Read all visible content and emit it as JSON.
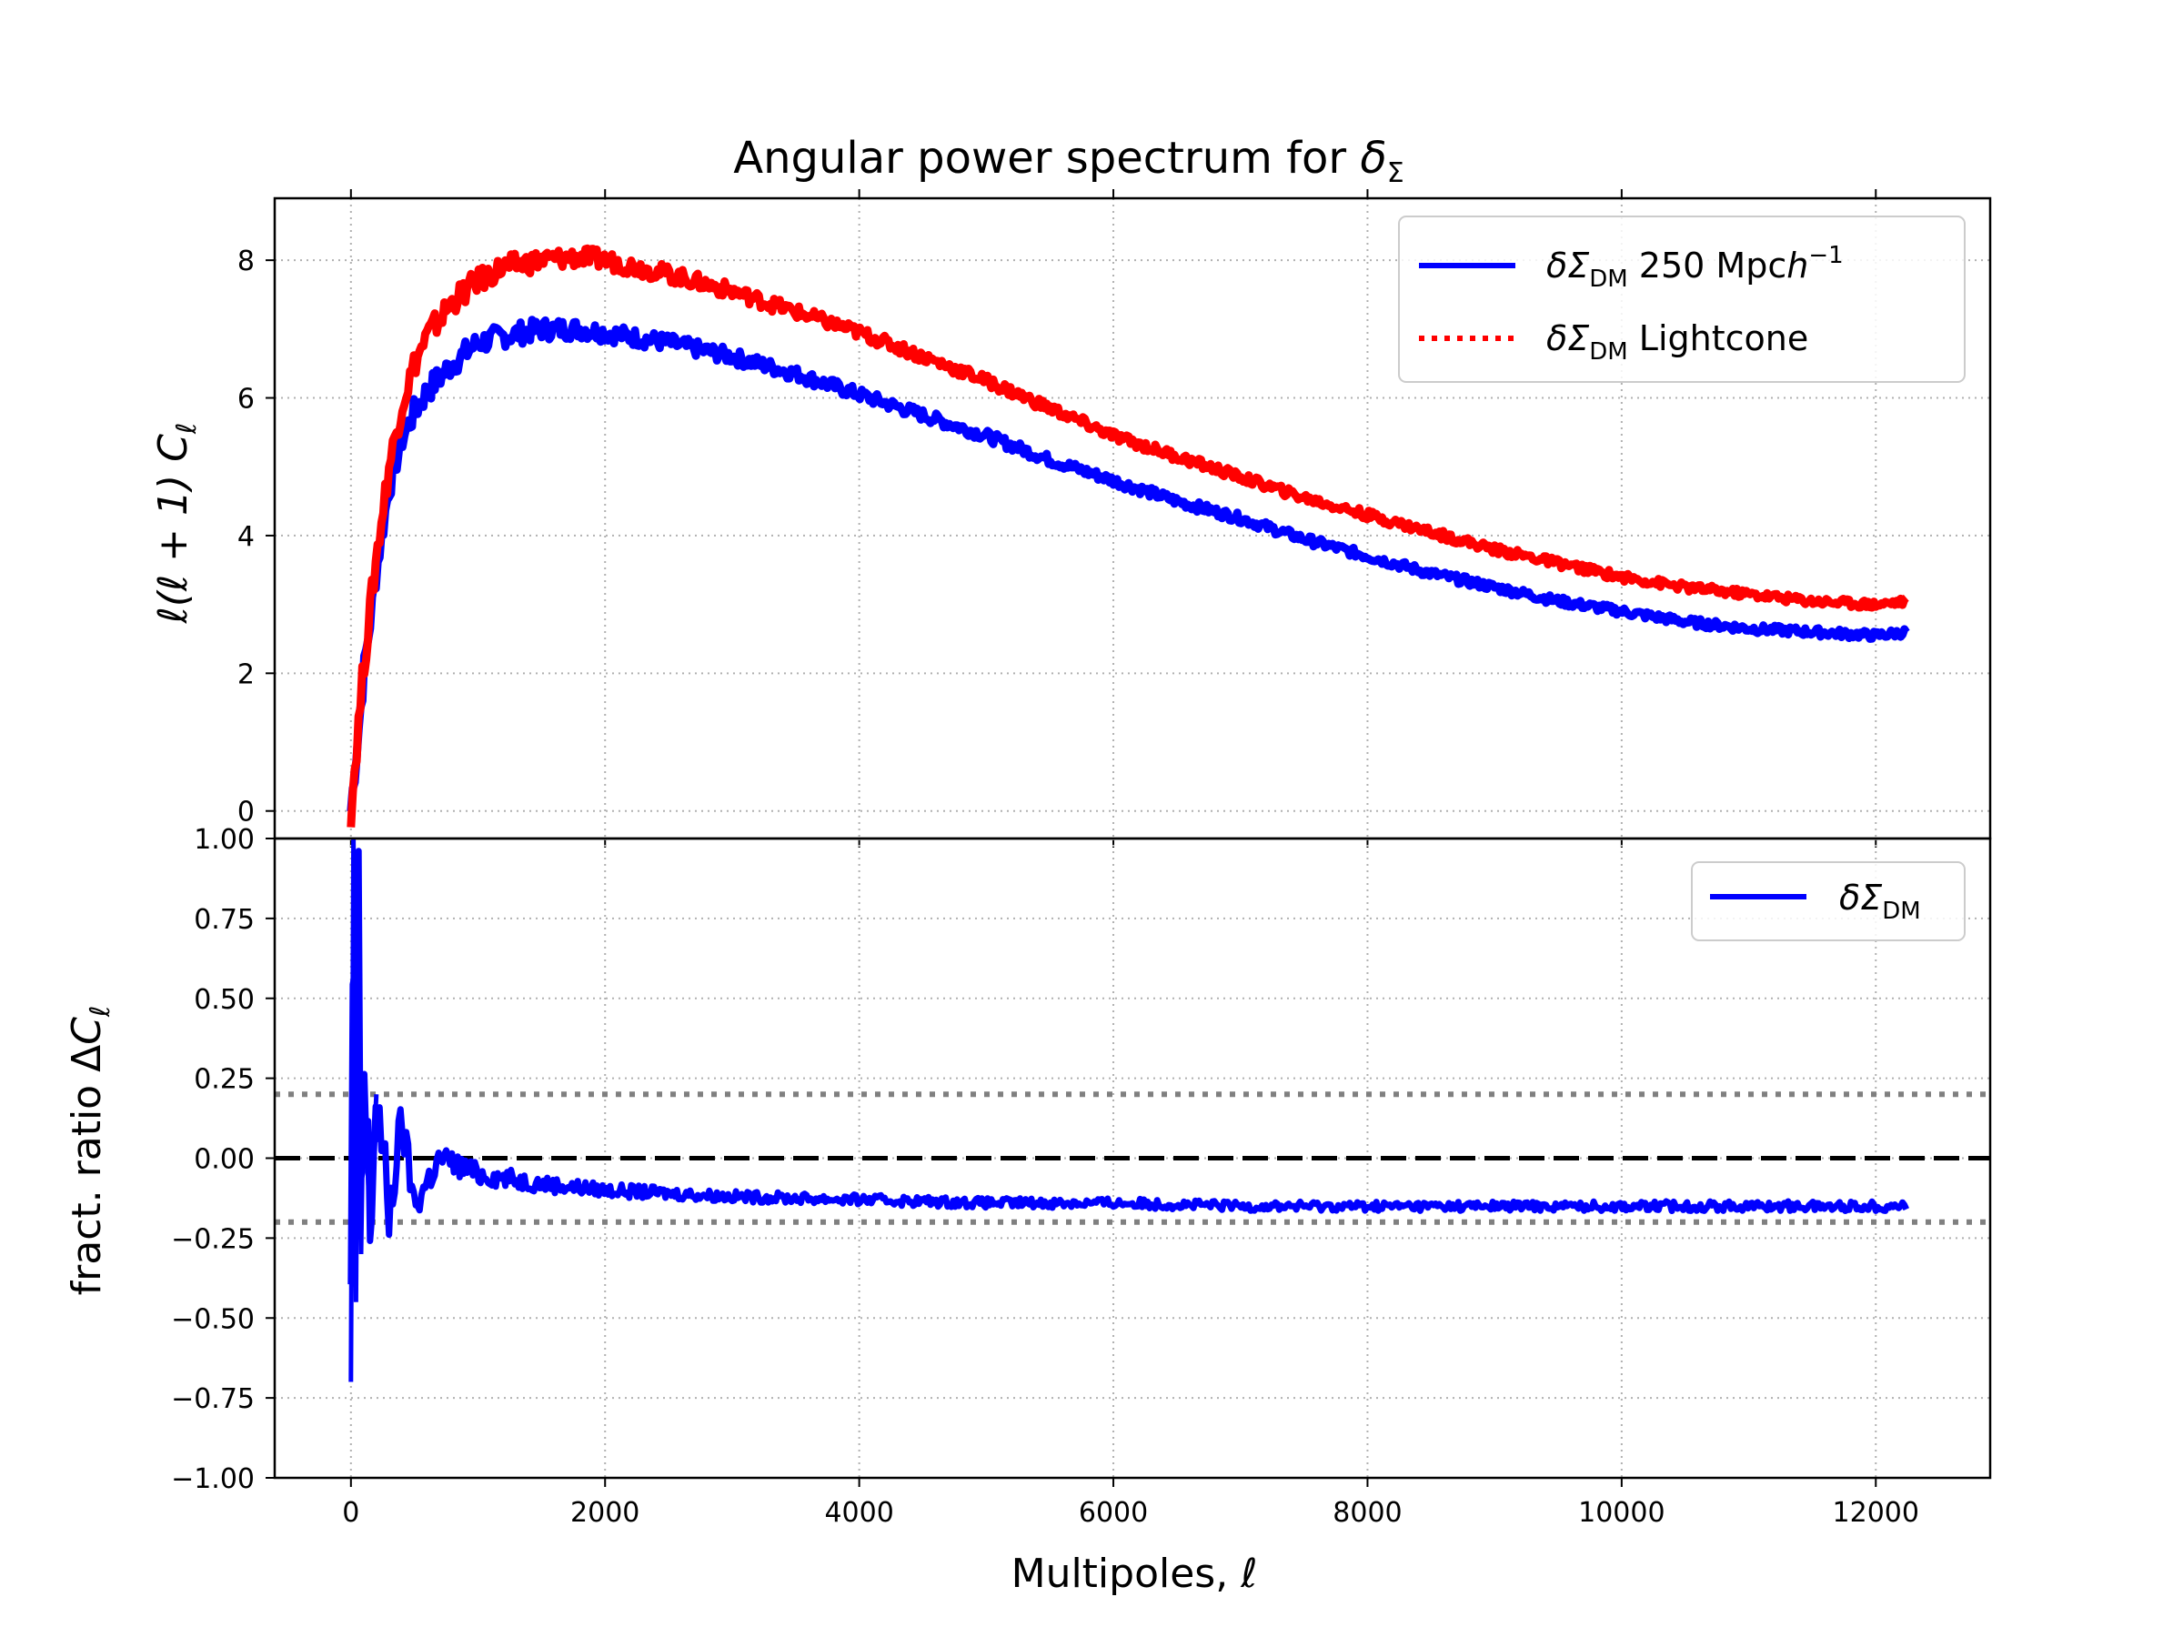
{
  "chart_data": [
    {
      "type": "line",
      "title_base": "Angular power spectrum for ",
      "title_symbol": "δ",
      "title_subscript": "Σ",
      "xlabel": "",
      "ylabel_parts": [
        "ℓ(ℓ + 1) ",
        "C",
        "ℓ"
      ],
      "xlim": [
        -600,
        12900
      ],
      "ylim": [
        -0.4,
        8.9
      ],
      "xticks": [
        0,
        2000,
        4000,
        6000,
        8000,
        10000,
        12000
      ],
      "yticks": [
        0,
        2,
        4,
        6,
        8
      ],
      "grid": true,
      "legend_position": "top-right",
      "series": [
        {
          "name": "δΣ_DM 250 Mpch^-1",
          "legend_main": "δΣ",
          "legend_sub": "DM",
          "legend_tail": " 250 Mpc",
          "legend_h": "h",
          "legend_sup": "−1",
          "color": "#0000ff",
          "style": "solid",
          "x": [
            0,
            100,
            200,
            300,
            400,
            500,
            600,
            800,
            1000,
            1200,
            1500,
            1800,
            2000,
            2500,
            3000,
            3500,
            4000,
            4500,
            5000,
            5500,
            6000,
            6500,
            7000,
            7500,
            8000,
            8500,
            9000,
            9500,
            10000,
            10500,
            11000,
            11500,
            12000,
            12250
          ],
          "y": [
            0.0,
            2.0,
            3.5,
            4.7,
            5.4,
            5.8,
            6.1,
            6.5,
            6.8,
            6.9,
            7.0,
            7.0,
            6.95,
            6.8,
            6.6,
            6.35,
            6.05,
            5.75,
            5.45,
            5.1,
            4.8,
            4.5,
            4.25,
            3.95,
            3.7,
            3.45,
            3.25,
            3.05,
            2.9,
            2.75,
            2.65,
            2.6,
            2.55,
            2.6
          ]
        },
        {
          "name": "δΣ_DM Lightcone",
          "legend_main": "δΣ",
          "legend_sub": "DM",
          "legend_tail": " Lightcone",
          "color": "#ff0000",
          "style": "dotted",
          "x": [
            0,
            100,
            200,
            300,
            400,
            500,
            600,
            800,
            1000,
            1200,
            1500,
            1800,
            2000,
            2500,
            3000,
            3500,
            4000,
            4500,
            5000,
            5500,
            6000,
            6500,
            7000,
            7500,
            8000,
            8500,
            9000,
            9500,
            10000,
            10500,
            11000,
            11500,
            12000,
            12250
          ],
          "y": [
            0.0,
            2.1,
            3.7,
            5.0,
            5.9,
            6.5,
            6.9,
            7.4,
            7.7,
            7.9,
            8.0,
            8.05,
            8.0,
            7.8,
            7.55,
            7.25,
            6.95,
            6.6,
            6.25,
            5.85,
            5.45,
            5.15,
            4.85,
            4.55,
            4.3,
            4.05,
            3.8,
            3.6,
            3.4,
            3.25,
            3.15,
            3.05,
            3.0,
            3.05
          ]
        }
      ]
    },
    {
      "type": "line",
      "xlabel_base": "Multipoles, ",
      "xlabel_symbol": "ℓ",
      "ylabel_parts": [
        "fract. ratio Δ",
        "C",
        "ℓ"
      ],
      "xlim": [
        -600,
        12900
      ],
      "ylim": [
        -1.0,
        1.0
      ],
      "xticks": [
        0,
        2000,
        4000,
        6000,
        8000,
        10000,
        12000
      ],
      "xtick_labels": [
        "0",
        "2000",
        "4000",
        "6000",
        "8000",
        "10000",
        "12000"
      ],
      "yticks": [
        -1.0,
        -0.75,
        -0.5,
        -0.25,
        0.0,
        0.25,
        0.5,
        0.75,
        1.0
      ],
      "ytick_labels": [
        "−1.00",
        "−0.75",
        "−0.50",
        "−0.25",
        "0.00",
        "0.25",
        "0.50",
        "0.75",
        "1.00"
      ],
      "grid": true,
      "legend_position": "top-right",
      "reference_lines": [
        {
          "y": 0.0,
          "color": "#000000",
          "style": "dashed"
        },
        {
          "y": 0.2,
          "color": "#808080",
          "style": "dotted"
        },
        {
          "y": -0.2,
          "color": "#808080",
          "style": "dotted"
        }
      ],
      "series": [
        {
          "name": "δΣ_DM",
          "legend_main": "δΣ",
          "legend_sub": "DM",
          "color": "#0000ff",
          "style": "solid",
          "x": [
            0,
            20,
            40,
            60,
            80,
            100,
            150,
            200,
            300,
            400,
            500,
            700,
            1000,
            1500,
            2000,
            3000,
            4000,
            5000,
            6000,
            7000,
            8000,
            9000,
            10000,
            11000,
            12000,
            12250
          ],
          "y": [
            -0.7,
            1.0,
            -0.45,
            0.72,
            -0.3,
            0.24,
            -0.2,
            0.2,
            -0.18,
            0.12,
            -0.15,
            0.0,
            -0.05,
            -0.08,
            -0.1,
            -0.12,
            -0.13,
            -0.14,
            -0.14,
            -0.15,
            -0.15,
            -0.15,
            -0.15,
            -0.15,
            -0.15,
            -0.15
          ],
          "band_halfwidth": 0.02
        }
      ]
    }
  ]
}
